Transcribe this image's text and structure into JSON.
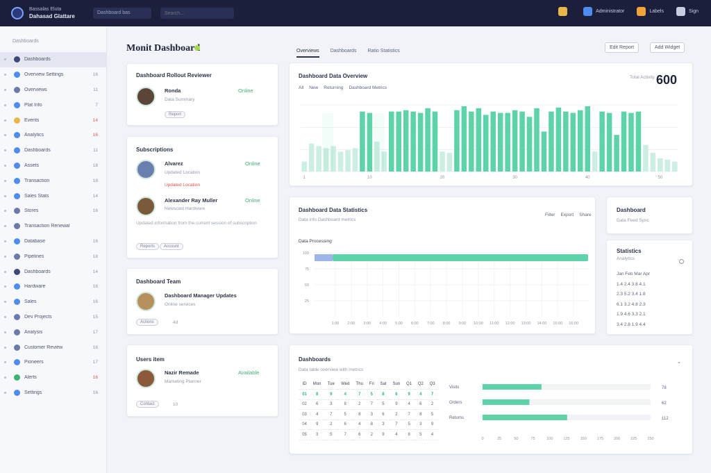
{
  "topbar": {
    "brand_line1": "Bassalas Eluta",
    "brand_line2": "Dahasad Glattare",
    "nav_label": "Dashboard bas",
    "search_placeholder": "Search...",
    "items": [
      {
        "icon": "settings-icon",
        "label": "",
        "color": "#e9b64a"
      },
      {
        "icon": "user-icon",
        "label": "Administrator",
        "color": "#4f8cf0"
      },
      {
        "icon": "cookie-icon",
        "label": "Labels",
        "color": "#f0a23b"
      },
      {
        "icon": "grid-icon",
        "label": "Sign",
        "color": "#c9cde0"
      }
    ]
  },
  "sidebar": {
    "header": "Dashboards",
    "items": [
      {
        "label": "Dashboards",
        "count": "",
        "icon_color": "#3c4a7a",
        "active": true
      },
      {
        "label": "Overview Settings",
        "count": "16",
        "icon_color": "#4f8cf0"
      },
      {
        "label": "Overviews",
        "count": "11",
        "icon_color": "#6b7aa8"
      },
      {
        "label": "Plat Info",
        "count": "7",
        "icon_color": "#4f8cf0"
      },
      {
        "label": "Events",
        "count": "14",
        "icon_color": "#e9b64a",
        "red": true
      },
      {
        "label": "Analytics",
        "count": "16",
        "icon_color": "#4f8cf0",
        "red": true
      },
      {
        "label": "Dashboards",
        "count": "11",
        "icon_color": "#4f8cf0"
      },
      {
        "label": "Assets",
        "count": "18",
        "icon_color": "#4f8cf0"
      },
      {
        "label": "Transaction",
        "count": "18",
        "icon_color": "#4f8cf0"
      },
      {
        "label": "Sales Stats",
        "count": "14",
        "icon_color": "#4f8cf0"
      },
      {
        "label": "Stores",
        "count": "16",
        "icon_color": "#6b7aa8"
      },
      {
        "label": "Transaction Renewal",
        "count": "",
        "icon_color": "#6b7aa8"
      },
      {
        "label": "Database",
        "count": "16",
        "icon_color": "#4f8cf0"
      },
      {
        "label": "Pipelines",
        "count": "18",
        "icon_color": "#6b7aa8"
      },
      {
        "label": "Dashboards",
        "count": "14",
        "icon_color": "#3c4a7a"
      },
      {
        "label": "Hardware",
        "count": "16",
        "icon_color": "#4f8cf0"
      },
      {
        "label": "Sales",
        "count": "16",
        "icon_color": "#4f8cf0"
      },
      {
        "label": "Dev Projects",
        "count": "15",
        "icon_color": "#6b7aa8"
      },
      {
        "label": "Analysis",
        "count": "17",
        "icon_color": "#6b7aa8"
      },
      {
        "label": "Customer Review",
        "count": "16",
        "icon_color": "#6b7aa8"
      },
      {
        "label": "Pioneers",
        "count": "17",
        "icon_color": "#4f8cf0"
      },
      {
        "label": "Alerts",
        "count": "16",
        "icon_color": "#3cb371",
        "red": true
      },
      {
        "label": "Settings",
        "count": "16",
        "icon_color": "#4f8cf0"
      }
    ]
  },
  "header": {
    "title": "Monit Dashboard",
    "tabs": [
      "Overviews",
      "Dashboards",
      "Ratio Statistics"
    ],
    "buttons": [
      "Edit Report",
      "Add Widget"
    ]
  },
  "cards": {
    "activity": {
      "title": "Dashboard Rollout Reviewer",
      "name": "Ronda",
      "sub": "Data Summary",
      "status": "Online",
      "pill": "Report"
    },
    "subscriptions": {
      "title": "Subscriptions",
      "people": [
        {
          "name": "Alvarez",
          "sub": "Updated Location",
          "status": "Online"
        },
        {
          "name": "Alexander Ray Muller",
          "sub": "Newscast Hardware",
          "status": "Online"
        }
      ],
      "note": "Updated information from the current session of subscription",
      "pills": [
        "Reports",
        "Account"
      ]
    },
    "team": {
      "title": "Dashboard Team",
      "name": "Dashboard Manager Updates",
      "sub": "Online services",
      "pill": "Actions",
      "meta": "4d"
    },
    "member": {
      "title": "Users item",
      "name": "Nazir Remade",
      "sub": "Marketing Planner",
      "status": "Available",
      "pill": "Contact",
      "meta": "10"
    }
  },
  "chart1": {
    "title": "Dashboard Data Overview",
    "legend": [
      "All",
      "New",
      "Returning",
      "Dashboard Metrics"
    ],
    "big_label": "Total Activity",
    "big_value": "600",
    "accent": "#5fd3a8"
  },
  "chart_data": [
    {
      "type": "bar",
      "title": "Dashboard Data Overview",
      "ylabel": "",
      "ylim": [
        0,
        100
      ],
      "categories": [
        "1",
        "2",
        "3",
        "4",
        "5",
        "6",
        "7",
        "8",
        "9",
        "10",
        "11",
        "12",
        "13",
        "14",
        "15",
        "16",
        "17",
        "18",
        "19",
        "20",
        "21",
        "22",
        "23",
        "24",
        "25",
        "26",
        "27",
        "28",
        "29",
        "30",
        "31",
        "32",
        "33",
        "34",
        "35",
        "36",
        "37",
        "38",
        "39",
        "40",
        "41",
        "42",
        "43",
        "44",
        "45",
        "46",
        "47",
        "48",
        "49",
        "50",
        "51",
        "52"
      ],
      "series": [
        {
          "name": "Primary",
          "values": [
            15,
            42,
            38,
            35,
            38,
            30,
            32,
            35,
            90,
            88,
            45,
            30,
            90,
            90,
            92,
            90,
            88,
            95,
            90,
            30,
            28,
            92,
            98,
            90,
            95,
            85,
            90,
            88,
            88,
            92,
            90,
            82,
            95,
            60,
            90,
            96,
            90,
            88,
            92,
            98,
            30,
            90,
            88,
            55,
            90,
            88,
            90,
            40,
            28,
            20,
            18,
            15
          ]
        }
      ]
    },
    {
      "type": "line",
      "title": "Dashboard Data Statistics",
      "ylabel": "",
      "ylim": [
        0,
        100
      ],
      "series": [
        {
          "name": "",
          "values": [
            88,
            88,
            88,
            88,
            88,
            88,
            88,
            88,
            88,
            88,
            88,
            88,
            88,
            88,
            88,
            88,
            88,
            88,
            88,
            88
          ]
        }
      ]
    },
    {
      "type": "bar",
      "orientation": "horizontal",
      "categories": [
        "Visits",
        "Orders",
        "Returns"
      ],
      "values": [
        78,
        62,
        112
      ],
      "xlim": [
        0,
        250
      ]
    }
  ],
  "chart2": {
    "title": "Dashboard Data Statistics",
    "subtitle": "Data info Dashboard metrics",
    "legend_label": "Data Processing",
    "tools": [
      "Filter",
      "Export",
      "Share"
    ],
    "y_ticks": [
      "100",
      "75",
      "50",
      "25"
    ],
    "x_ticks": [
      "1:00",
      "2:00",
      "3:00",
      "4:00",
      "5:00",
      "6:00",
      "7:00",
      "8:00",
      "9:00",
      "10:00",
      "11:00",
      "12:00",
      "13:00",
      "14:00",
      "15:00",
      "16:00"
    ]
  },
  "panel_small1": {
    "title": "Dashboard",
    "sub": "Data Feed Sync"
  },
  "panel_small2": {
    "title": "Statistics",
    "sub": "Analytics",
    "rows": [
      "Jan  Feb  Mar  Apr",
      "1.4  2.4  3.8  4.1",
      "2.3  5.2  3.4  1.8",
      "6.1  3.2  4.8  2.3",
      "1.9  4.6  3.3  2.1",
      "3.4  2.8  1.9  4.4"
    ]
  },
  "bottom": {
    "title": "Dashboards",
    "subtitle": "Data table overview with metrics",
    "columns": [
      "ID",
      "Mon",
      "Tue",
      "Wed",
      "Thu",
      "Fri",
      "Sat",
      "Sun",
      "Q1",
      "Q2",
      "Q3"
    ],
    "rows": [
      [
        "01",
        "8",
        "9",
        "4",
        "7",
        "5",
        "8",
        "6",
        "9",
        "4",
        "7"
      ],
      [
        "02",
        "6",
        "3",
        "8",
        "2",
        "7",
        "5",
        "9",
        "4",
        "6",
        "2"
      ],
      [
        "03",
        "4",
        "7",
        "5",
        "8",
        "3",
        "6",
        "2",
        "7",
        "8",
        "5"
      ],
      [
        "04",
        "9",
        "2",
        "6",
        "4",
        "8",
        "3",
        "7",
        "5",
        "3",
        "9"
      ],
      [
        "05",
        "3",
        "5",
        "7",
        "6",
        "2",
        "9",
        "4",
        "8",
        "5",
        "4"
      ]
    ],
    "hbars": [
      {
        "label": "Visits",
        "value": "78"
      },
      {
        "label": "Orders",
        "value": "62"
      },
      {
        "label": "Returns",
        "value": "112"
      }
    ],
    "hbar_ticks": [
      "0",
      "25",
      "50",
      "75",
      "100",
      "125",
      "150",
      "175",
      "200",
      "225",
      "250"
    ]
  }
}
